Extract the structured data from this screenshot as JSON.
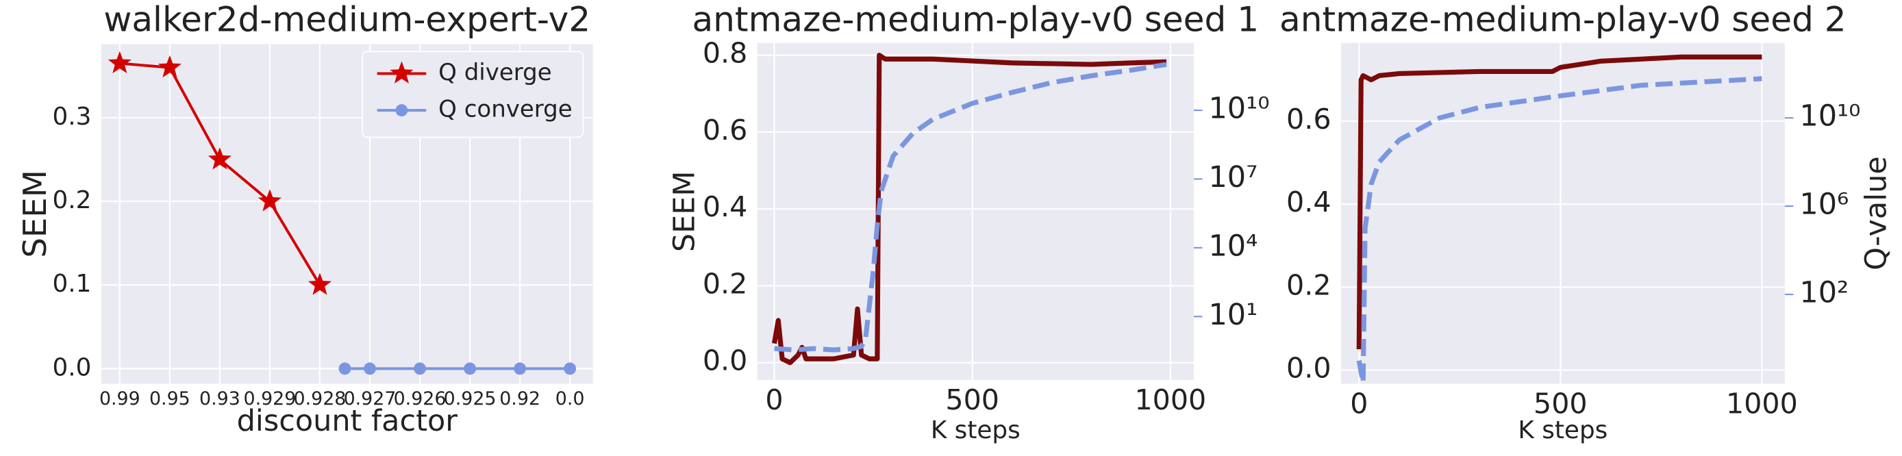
{
  "chart_data": [
    {
      "type": "line",
      "title": "walker2d-medium-expert-v2",
      "xlabel": "discount factor",
      "ylabel": "SEEM",
      "xlim": [
        -0.37,
        9.46
      ],
      "xticks": [
        {
          "value": 0,
          "label": "0.99"
        },
        {
          "value": 1,
          "label": "0.95"
        },
        {
          "value": 2,
          "label": "0.93"
        },
        {
          "value": 3,
          "label": "0.929"
        },
        {
          "value": 4,
          "label": "0.928"
        },
        {
          "value": 5,
          "label": "0.927"
        },
        {
          "value": 6,
          "label": "0.926"
        },
        {
          "value": 7,
          "label": "0.925"
        },
        {
          "value": 8,
          "label": "0.92"
        },
        {
          "value": 9,
          "label": "0.0"
        }
      ],
      "ylim": [
        -0.018,
        0.388
      ],
      "yticks": [
        {
          "value": 0,
          "label": "0.0"
        },
        0.1,
        0.2,
        0.3
      ],
      "grid": true,
      "legend": "upper right",
      "series": [
        {
          "name": "Q diverge",
          "color": "#d40000",
          "marker": "star",
          "x": [
            0,
            1,
            2,
            3,
            4
          ],
          "values": [
            0.365,
            0.36,
            0.25,
            0.2,
            0.1
          ]
        },
        {
          "name": "Q converge",
          "color": "#7b96e0",
          "marker": "circle",
          "x": [
            4.5,
            5,
            6,
            7,
            8,
            9
          ],
          "values": [
            0,
            0,
            0,
            0,
            0,
            0
          ]
        }
      ]
    },
    {
      "type": "line",
      "title": "antmaze-medium-play-v0 seed 1",
      "xlabel": "K steps",
      "ylabel": "SEEM",
      "xlim": [
        -43,
        1059
      ],
      "xticks": [
        0,
        500,
        1000
      ],
      "ylim": [
        -0.045,
        0.832
      ],
      "yticks": [
        {
          "value": 0,
          "label": "0.0"
        },
        0.2,
        0.4,
        0.6,
        0.8
      ],
      "y2lim": [
        0.017,
        8700000000000.0
      ],
      "y2scale": "log",
      "y2ticks": [
        {
          "value": 10,
          "label": "10¹"
        },
        {
          "value": 10000,
          "label": "10⁴"
        },
        {
          "value": 10000000,
          "label": "10⁷"
        },
        {
          "value": 10000000000,
          "label": "10¹⁰"
        }
      ],
      "grid": true,
      "series": [
        {
          "name": "SEEM",
          "color": "#7b0a0a",
          "style": "solid",
          "x": [
            0,
            10,
            20,
            40,
            60,
            70,
            80,
            100,
            150,
            200,
            210,
            220,
            240,
            260,
            265,
            280,
            300,
            400,
            500,
            600,
            700,
            800,
            900,
            990
          ],
          "values": [
            0.05,
            0.11,
            0.01,
            0.0,
            0.02,
            0.04,
            0.01,
            0.01,
            0.01,
            0.02,
            0.14,
            0.02,
            0.01,
            0.01,
            0.8,
            0.79,
            0.79,
            0.79,
            0.785,
            0.78,
            0.778,
            0.776,
            0.78,
            0.783
          ]
        },
        {
          "name": "Q-value",
          "color": "#7b96e0",
          "style": "dashed",
          "axis": "y2",
          "x": [
            0,
            50,
            100,
            150,
            200,
            220,
            230,
            240,
            250,
            260,
            270,
            300,
            350,
            400,
            500,
            600,
            700,
            800,
            900,
            990
          ],
          "values": [
            0.4,
            0.35,
            0.4,
            0.35,
            0.4,
            0.5,
            1,
            30,
            1000,
            100000,
            3000000,
            100000000,
            1000000000,
            4000000000,
            20000000000,
            60000000000,
            160000000000,
            320000000000,
            560000000000,
            1000000000000
          ]
        }
      ]
    },
    {
      "type": "line",
      "title": "antmaze-medium-play-v0 seed 2",
      "xlabel": "K steps",
      "y2label": "Q-value",
      "xlim": [
        -45,
        1057
      ],
      "xticks": [
        0,
        500,
        1000
      ],
      "ylim": [
        -0.033,
        0.789
      ],
      "yticks": [
        {
          "value": 0,
          "label": "0.0"
        },
        0.2,
        0.4,
        0.6
      ],
      "y2lim": [
        0.009,
        25000000000000.0
      ],
      "y2scale": "log",
      "y2ticks": [
        {
          "value": 100,
          "label": "10²"
        },
        {
          "value": 1000000,
          "label": "10⁶"
        },
        {
          "value": 10000000000,
          "label": "10¹⁰"
        }
      ],
      "grid": true,
      "series": [
        {
          "name": "SEEM",
          "color": "#7b0a0a",
          "style": "solid",
          "x": [
            0,
            5,
            10,
            30,
            50,
            100,
            300,
            480,
            500,
            600,
            700,
            800,
            1000
          ],
          "values": [
            0.05,
            0.7,
            0.71,
            0.7,
            0.71,
            0.715,
            0.72,
            0.72,
            0.73,
            0.745,
            0.75,
            0.755,
            0.755
          ]
        },
        {
          "name": "Q-value",
          "color": "#7b96e0",
          "style": "dashed",
          "axis": "y2",
          "x": [
            0,
            5,
            10,
            15,
            30,
            50,
            100,
            200,
            300,
            500,
            700,
            1000
          ],
          "values": [
            0.1,
            0.03,
            0.01,
            100000,
            10000000,
            100000000,
            1000000000,
            10000000000,
            30000000000,
            100000000000,
            300000000000,
            600000000000
          ]
        }
      ]
    }
  ]
}
